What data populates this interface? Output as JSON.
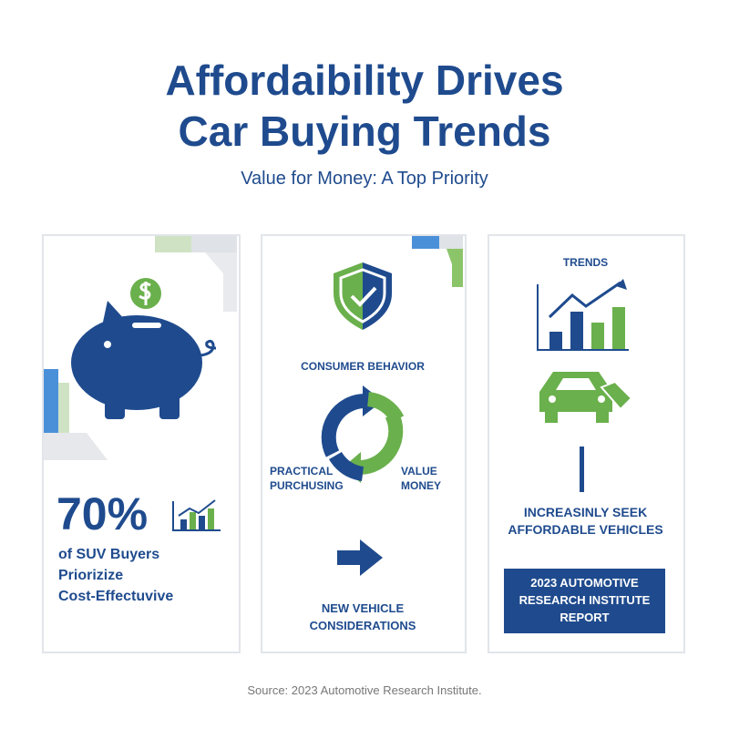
{
  "header": {
    "title_lines": [
      "Affordaibility Drives",
      "Car Buying Trends"
    ],
    "subtitle": "Value for Money: A Top Priority"
  },
  "cards": [
    {
      "stat": "70%",
      "lines": [
        "of SUV Buyers",
        "Priorizize",
        "Cost-Effectuvive"
      ]
    },
    {
      "heading": "CONSUMER BEHAVIOR",
      "left_label": [
        "PRACTICAL",
        "PURCHUSING"
      ],
      "right_label": [
        "VALUE",
        "MONEY"
      ],
      "footer": [
        "NEW VEHICLE",
        "CONSIDERATIONS"
      ]
    },
    {
      "heading": "TRENDS",
      "lines": [
        "INCREASINLY SEEK",
        "AFFORDABLE VEHICLES"
      ],
      "box": [
        "2023 AUTOMOTIVE",
        "RESEARCH INSTITUTE",
        "REPORT"
      ]
    }
  ],
  "source": "Source: 2023 Automotive Research Institute."
}
